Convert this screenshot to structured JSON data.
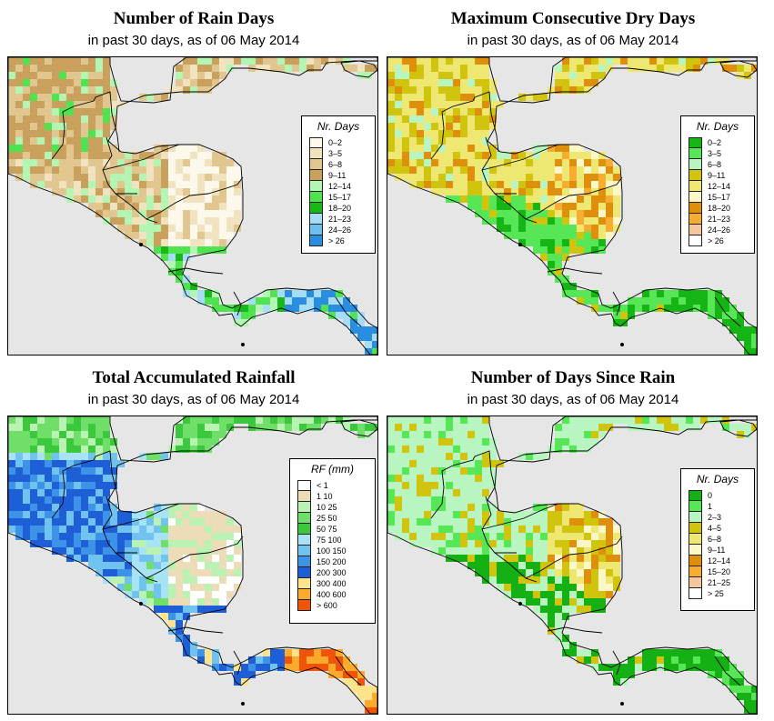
{
  "panels": [
    {
      "id": "rain_days",
      "title": "Number of Rain Days",
      "subtitle": "in past 30 days, as of  06 May 2014",
      "legend": {
        "title": "Nr. Days",
        "items": [
          {
            "label": "0–2",
            "color": "#fdf8ec"
          },
          {
            "label": "3–5",
            "color": "#f1e3bf"
          },
          {
            "label": "6–8",
            "color": "#e1c68f"
          },
          {
            "label": "9–11",
            "color": "#c9a05c"
          },
          {
            "label": "12–14",
            "color": "#b3f5b3"
          },
          {
            "label": "15–17",
            "color": "#4fe34f"
          },
          {
            "label": "18–20",
            "color": "#17b817"
          },
          {
            "label": "21–23",
            "color": "#a6dcf5"
          },
          {
            "label": "24–26",
            "color": "#6cc0ec"
          },
          {
            "label": "> 26",
            "color": "#2a8ee0"
          }
        ]
      }
    },
    {
      "id": "max_dry_days",
      "title": "Maximum Consecutive Dry Days",
      "subtitle": "in past 30 days, as of  06 May 2014",
      "legend": {
        "title": "Nr. Days",
        "items": [
          {
            "label": "0–2",
            "color": "#16b516"
          },
          {
            "label": "3–5",
            "color": "#56e656"
          },
          {
            "label": "6–8",
            "color": "#b8f5c0"
          },
          {
            "label": "9–11",
            "color": "#d1c40e"
          },
          {
            "label": "12–14",
            "color": "#eee873"
          },
          {
            "label": "15–17",
            "color": "#fbf7c6"
          },
          {
            "label": "18–20",
            "color": "#de8f0c"
          },
          {
            "label": "21–23",
            "color": "#f6ad32"
          },
          {
            "label": "24–26",
            "color": "#f6c79c"
          },
          {
            "label": "> 26",
            "color": "#ffffff"
          }
        ]
      }
    },
    {
      "id": "total_rainfall",
      "title": "Total Accumulated Rainfall",
      "subtitle": "in past 30 days, as of  06 May 2014",
      "legend": {
        "title": "RF (mm)",
        "items": [
          {
            "label": "< 1",
            "color": "#ffffff"
          },
          {
            "label": "1  10",
            "color": "#ecdcb8"
          },
          {
            "label": "10  25",
            "color": "#b9f2b3"
          },
          {
            "label": "25  50",
            "color": "#6fdf6a"
          },
          {
            "label": "50  75",
            "color": "#3cc83c"
          },
          {
            "label": "75  100",
            "color": "#a7e3f5"
          },
          {
            "label": "100  150",
            "color": "#71c3ef"
          },
          {
            "label": "150  200",
            "color": "#3c93e8"
          },
          {
            "label": "200  300",
            "color": "#1e5fd8"
          },
          {
            "label": "300  400",
            "color": "#fde38b"
          },
          {
            "label": "400  600",
            "color": "#fbaa2c"
          },
          {
            "label": "> 600",
            "color": "#f0530a"
          }
        ]
      }
    },
    {
      "id": "days_since_rain",
      "title": "Number of Days Since Rain",
      "subtitle": "in past 30 days, as of  06 May 2014",
      "legend": {
        "title": "Nr. Days",
        "items": [
          {
            "label": "0",
            "color": "#14b014"
          },
          {
            "label": "1",
            "color": "#56e656"
          },
          {
            "label": "2–3",
            "color": "#b8f5c0"
          },
          {
            "label": "4–5",
            "color": "#d1c40e"
          },
          {
            "label": "6–8",
            "color": "#eee873"
          },
          {
            "label": "9–11",
            "color": "#fbf7c6"
          },
          {
            "label": "12–14",
            "color": "#de8f0c"
          },
          {
            "label": "15–20",
            "color": "#f6ad32"
          },
          {
            "label": "21–25",
            "color": "#f6c79c"
          },
          {
            "label": "> 25",
            "color": "#ffffff"
          }
        ]
      }
    }
  ],
  "map_colors": {
    "ocean": "#e6e6e6",
    "border": "#000000"
  }
}
